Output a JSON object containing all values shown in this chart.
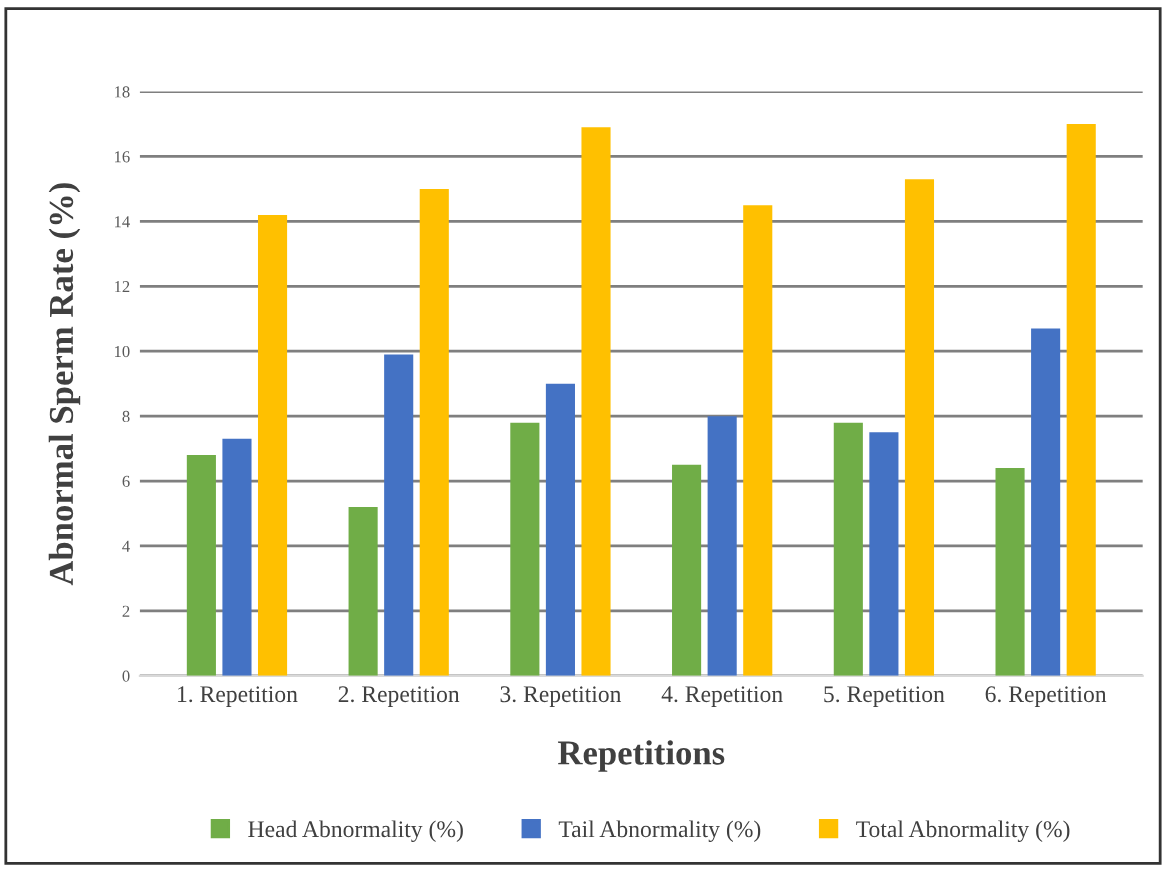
{
  "chart_data": {
    "type": "bar",
    "xlabel": "Repetitions",
    "ylabel": "Abnormal Sperm Rate (%)",
    "categories": [
      "1. Repetition",
      "2. Repetition",
      "3. Repetition",
      "4. Repetition",
      "5. Repetition",
      "6. Repetition"
    ],
    "series": [
      {
        "name": "Head Abnormality (%)",
        "color": "#70ad47",
        "values": [
          6.8,
          5.2,
          7.8,
          6.5,
          7.8,
          6.4
        ]
      },
      {
        "name": "Tail Abnormality (%)",
        "color": "#4472c4",
        "values": [
          7.3,
          9.9,
          9.0,
          8.0,
          7.5,
          10.7
        ]
      },
      {
        "name": "Total Abnormality (%)",
        "color": "#ffc000",
        "values": [
          14.2,
          15.0,
          16.9,
          14.5,
          15.3,
          17.0
        ]
      }
    ],
    "ylim": [
      0,
      18
    ],
    "yticks": [
      0,
      2,
      4,
      6,
      8,
      10,
      12,
      14,
      16,
      18
    ],
    "grid": "y",
    "legend": "bottom"
  }
}
